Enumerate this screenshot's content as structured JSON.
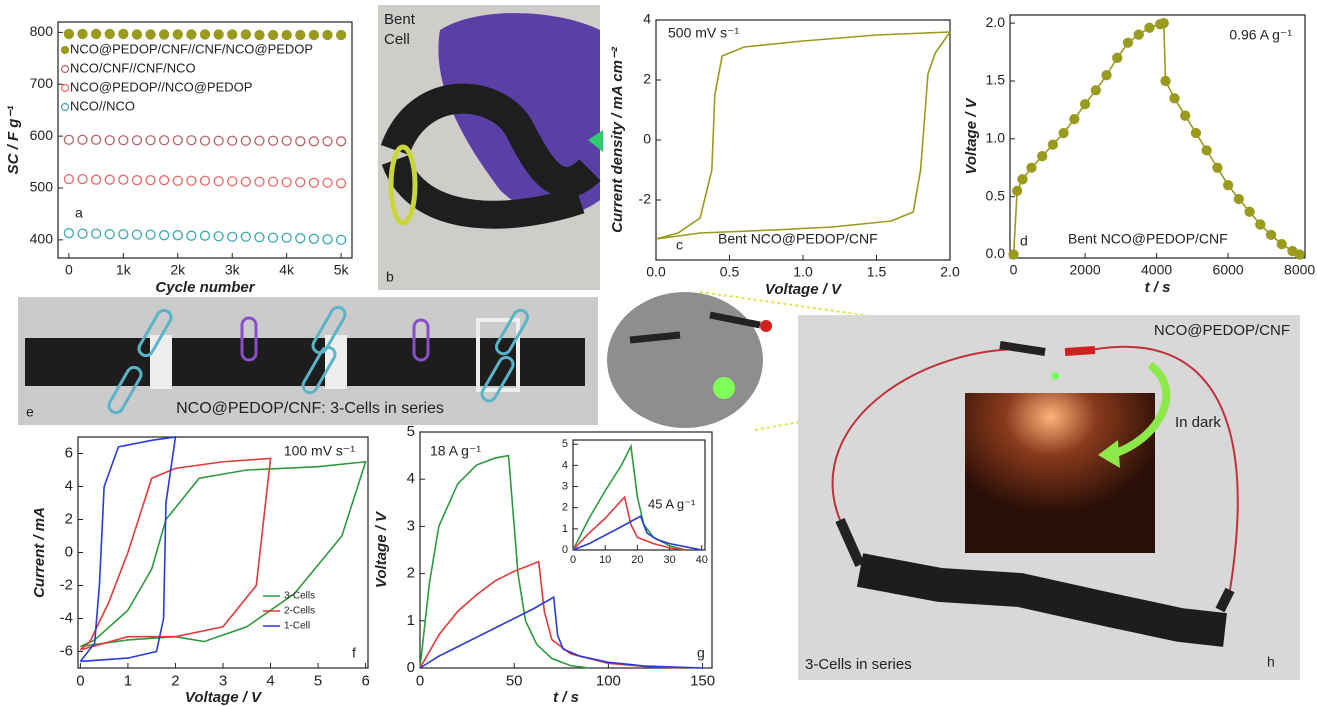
{
  "chart_data": [
    {
      "type": "scatter",
      "panel_label": "a",
      "xlabel": "Cycle number",
      "ylabel": "SC / F g⁻¹",
      "legend": "upper left",
      "x": [
        0,
        250,
        500,
        750,
        1000,
        1250,
        1500,
        1750,
        2000,
        2250,
        2500,
        2750,
        3000,
        3250,
        3500,
        3750,
        4000,
        4250,
        4500,
        4750,
        5000
      ],
      "xlim": [
        -200,
        5200
      ],
      "ylim": [
        365,
        820
      ],
      "xticks": [
        0,
        {
          "value": 1000,
          "label": "1k"
        },
        {
          "value": 2000,
          "label": "2k"
        },
        {
          "value": 3000,
          "label": "3k"
        },
        {
          "value": 4000,
          "label": "4k"
        },
        {
          "value": 5000,
          "label": "5k"
        }
      ],
      "yticks": [
        400,
        500,
        600,
        700,
        800
      ],
      "series": [
        {
          "name": "NCO@PEDOP/CNF//CNF/NCO@PEDOP",
          "color": "#9a9a1e",
          "filled": true,
          "values": [
            797,
            797,
            797,
            797,
            797,
            796,
            796,
            796,
            796,
            796,
            796,
            796,
            796,
            796,
            795,
            795,
            795,
            795,
            795,
            795,
            795
          ]
        },
        {
          "name": "NCO/CNF//CNF/NCO",
          "color": "#b5656a",
          "filled": false,
          "values": [
            593,
            593,
            593,
            592,
            592,
            592,
            592,
            592,
            592,
            592,
            591,
            591,
            591,
            591,
            591,
            591,
            591,
            590,
            590,
            590,
            590
          ]
        },
        {
          "name": "NCO@PEDOP//NCO@PEDOP",
          "color": "#e8696a",
          "filled": false,
          "values": [
            517,
            517,
            516,
            516,
            516,
            515,
            515,
            515,
            514,
            514,
            514,
            513,
            513,
            512,
            512,
            512,
            511,
            511,
            510,
            510,
            509
          ]
        },
        {
          "name": "NCO//NCO",
          "color": "#3aa8b0",
          "filled": false,
          "values": [
            413,
            412,
            412,
            411,
            411,
            410,
            410,
            409,
            409,
            408,
            408,
            407,
            406,
            406,
            405,
            404,
            404,
            403,
            402,
            401,
            400
          ]
        }
      ]
    },
    {
      "type": "line",
      "panel_label": "c",
      "xlabel": "Voltage / V",
      "ylabel": "Current density / mA cm⁻²",
      "annotations": [
        "500 mV s⁻¹",
        "Bent NCO@PEDOP/CNF"
      ],
      "xlim": [
        0,
        2
      ],
      "ylim": [
        -4,
        4
      ],
      "xticks": [
        {
          "value": 0,
          "label": "0.0"
        },
        0.5,
        {
          "value": 1,
          "label": "1.0"
        },
        1.5,
        {
          "value": 2,
          "label": "2.0"
        }
      ],
      "yticks": [
        -2,
        0,
        2,
        4
      ],
      "series": [
        {
          "color": "#9a9a1e",
          "x": [
            0,
            0.3,
            0.8,
            1.2,
            1.6,
            1.75,
            1.8,
            1.85,
            1.9,
            2.0,
            1.5,
            1.0,
            0.6,
            0.45,
            0.4,
            0.38,
            0.3,
            0.15,
            0
          ],
          "values": [
            -3.3,
            -3.1,
            -3.0,
            -2.9,
            -2.7,
            -2.4,
            -1,
            2.2,
            2.9,
            3.6,
            3.5,
            3.3,
            3.1,
            2.8,
            1.5,
            -1,
            -2.6,
            -3.1,
            -3.3
          ]
        }
      ]
    },
    {
      "type": "line",
      "markers": true,
      "panel_label": "d",
      "xlabel": "t / s",
      "ylabel": "Voltage / V",
      "annotations": [
        "0.96 A g⁻¹",
        "Bent NCO@PEDOP/CNF"
      ],
      "xlim": [
        -100,
        8150
      ],
      "ylim": [
        -0.03,
        2.07
      ],
      "xticks": [
        0,
        2000,
        4000,
        6000,
        8000
      ],
      "yticks": [
        {
          "value": 0,
          "label": "0.0"
        },
        0.5,
        {
          "value": 1,
          "label": "1.0"
        },
        1.5,
        {
          "value": 2,
          "label": "2.0"
        }
      ],
      "series": [
        {
          "color": "#9a9a1e",
          "x": [
            0,
            100,
            250,
            500,
            800,
            1100,
            1400,
            1700,
            2000,
            2300,
            2600,
            2900,
            3200,
            3500,
            3800,
            4100,
            4200,
            4250,
            4500,
            4800,
            5100,
            5400,
            5700,
            6000,
            6300,
            6600,
            6900,
            7200,
            7500,
            7800,
            8000
          ],
          "values": [
            0,
            0.55,
            0.65,
            0.75,
            0.85,
            0.95,
            1.05,
            1.17,
            1.3,
            1.42,
            1.55,
            1.7,
            1.83,
            1.9,
            1.96,
            1.99,
            2.0,
            1.5,
            1.35,
            1.2,
            1.05,
            0.9,
            0.75,
            0.6,
            0.48,
            0.37,
            0.26,
            0.17,
            0.09,
            0.03,
            0
          ]
        }
      ]
    },
    {
      "type": "line",
      "panel_label": "f",
      "xlabel": "Voltage / V",
      "ylabel": "Current / mA",
      "annotations": [
        "100 mV s⁻¹"
      ],
      "legend": "lower right",
      "xlim": [
        -0.05,
        6.05
      ],
      "ylim": [
        -7,
        7
      ],
      "xticks": [
        0,
        1,
        2,
        3,
        4,
        5,
        6
      ],
      "yticks": [
        -6,
        -4,
        -2,
        0,
        2,
        4,
        6
      ],
      "series": [
        {
          "name": "3-Cells",
          "color": "#2e9a3e",
          "x": [
            0,
            1,
            2,
            2.6,
            3.5,
            4.5,
            5.5,
            6,
            5,
            3.5,
            2.5,
            1.8,
            1.5,
            1.0,
            0.3,
            0
          ],
          "values": [
            -5.7,
            -5.3,
            -5.1,
            -5.4,
            -4.5,
            -2.5,
            1,
            5.5,
            5.2,
            5.0,
            4.5,
            2,
            -1,
            -3.5,
            -5.3,
            -5.7
          ]
        },
        {
          "name": "2-Cells",
          "color": "#e03a3a",
          "x": [
            0,
            1,
            2,
            3,
            3.7,
            4,
            3,
            2,
            1.5,
            1.0,
            0.6,
            0.2,
            0
          ],
          "values": [
            -5.9,
            -5.1,
            -5.1,
            -4.5,
            -2,
            5.7,
            5.5,
            5.1,
            4.5,
            0,
            -3,
            -5.4,
            -5.9
          ]
        },
        {
          "name": "1-Cell",
          "color": "#2a3ad8",
          "x": [
            0,
            1,
            1.6,
            1.75,
            1.8,
            2,
            1.5,
            0.8,
            0.5,
            0.4,
            0.3,
            0
          ],
          "values": [
            -6.6,
            -6.4,
            -6.0,
            -4,
            3,
            7,
            6.8,
            6.4,
            4,
            -2,
            -5.5,
            -6.6
          ]
        }
      ]
    },
    {
      "type": "line",
      "panel_label": "g",
      "xlabel": "t / s",
      "ylabel": "Voltage / V",
      "annotations": [
        "18 A g⁻¹"
      ],
      "xlim": [
        0,
        155
      ],
      "ylim": [
        0,
        5
      ],
      "xticks": [
        0,
        50,
        100,
        150
      ],
      "yticks": [
        0,
        1,
        2,
        3,
        4,
        5
      ],
      "series": [
        {
          "color": "#2e9a3e",
          "x": [
            0,
            5,
            10,
            20,
            30,
            40,
            47,
            52,
            56,
            62,
            70,
            80,
            90
          ],
          "values": [
            0,
            1.8,
            3,
            3.9,
            4.3,
            4.45,
            4.5,
            2,
            1,
            0.5,
            0.2,
            0.05,
            0
          ]
        },
        {
          "color": "#e03a3a",
          "x": [
            0,
            10,
            20,
            30,
            40,
            50,
            63,
            66,
            70,
            80,
            100,
            120,
            140
          ],
          "values": [
            0,
            0.7,
            1.2,
            1.55,
            1.85,
            2.05,
            2.25,
            1.2,
            0.6,
            0.3,
            0.1,
            0.03,
            0
          ]
        },
        {
          "color": "#2a3ad8",
          "x": [
            0,
            10,
            20,
            30,
            40,
            50,
            60,
            71,
            73,
            76,
            85,
            100,
            120,
            150
          ],
          "values": [
            0,
            0.25,
            0.45,
            0.65,
            0.85,
            1.05,
            1.25,
            1.5,
            0.7,
            0.4,
            0.25,
            0.12,
            0.04,
            0
          ]
        }
      ]
    },
    {
      "type": "line",
      "annotations": [
        "45 A g⁻¹"
      ],
      "xlim": [
        0,
        41
      ],
      "ylim": [
        0,
        5.2
      ],
      "xticks": [
        0,
        10,
        20,
        30,
        40
      ],
      "yticks": [
        0,
        1,
        2,
        3,
        4,
        5
      ],
      "series": [
        {
          "color": "#2e9a3e",
          "x": [
            0,
            5,
            10,
            15,
            18,
            20,
            22,
            25,
            30,
            35
          ],
          "values": [
            0,
            1.5,
            2.8,
            4,
            4.9,
            2.5,
            1.2,
            0.6,
            0.2,
            0
          ]
        },
        {
          "color": "#e03a3a",
          "x": [
            0,
            5,
            10,
            16,
            18,
            20,
            25,
            30,
            35
          ],
          "values": [
            0,
            0.8,
            1.5,
            2.5,
            1.2,
            0.6,
            0.3,
            0.1,
            0
          ]
        },
        {
          "color": "#2a3ad8",
          "x": [
            0,
            5,
            10,
            15,
            21,
            23,
            26,
            30,
            35,
            40
          ],
          "values": [
            0,
            0.3,
            0.7,
            1.1,
            1.6,
            0.8,
            0.5,
            0.3,
            0.15,
            0
          ]
        }
      ]
    }
  ],
  "photos": {
    "b": {
      "title_lines": [
        "Bent",
        "Cell"
      ],
      "panel_label": "b"
    },
    "e": {
      "caption": "NCO@PEDOP/CNF: 3-Cells in series",
      "panel_label": "e"
    },
    "h": {
      "title": "NCO@PEDOP/CNF",
      "inset_label": "In dark",
      "caption": "3-Cells in series",
      "panel_label": "h"
    }
  }
}
